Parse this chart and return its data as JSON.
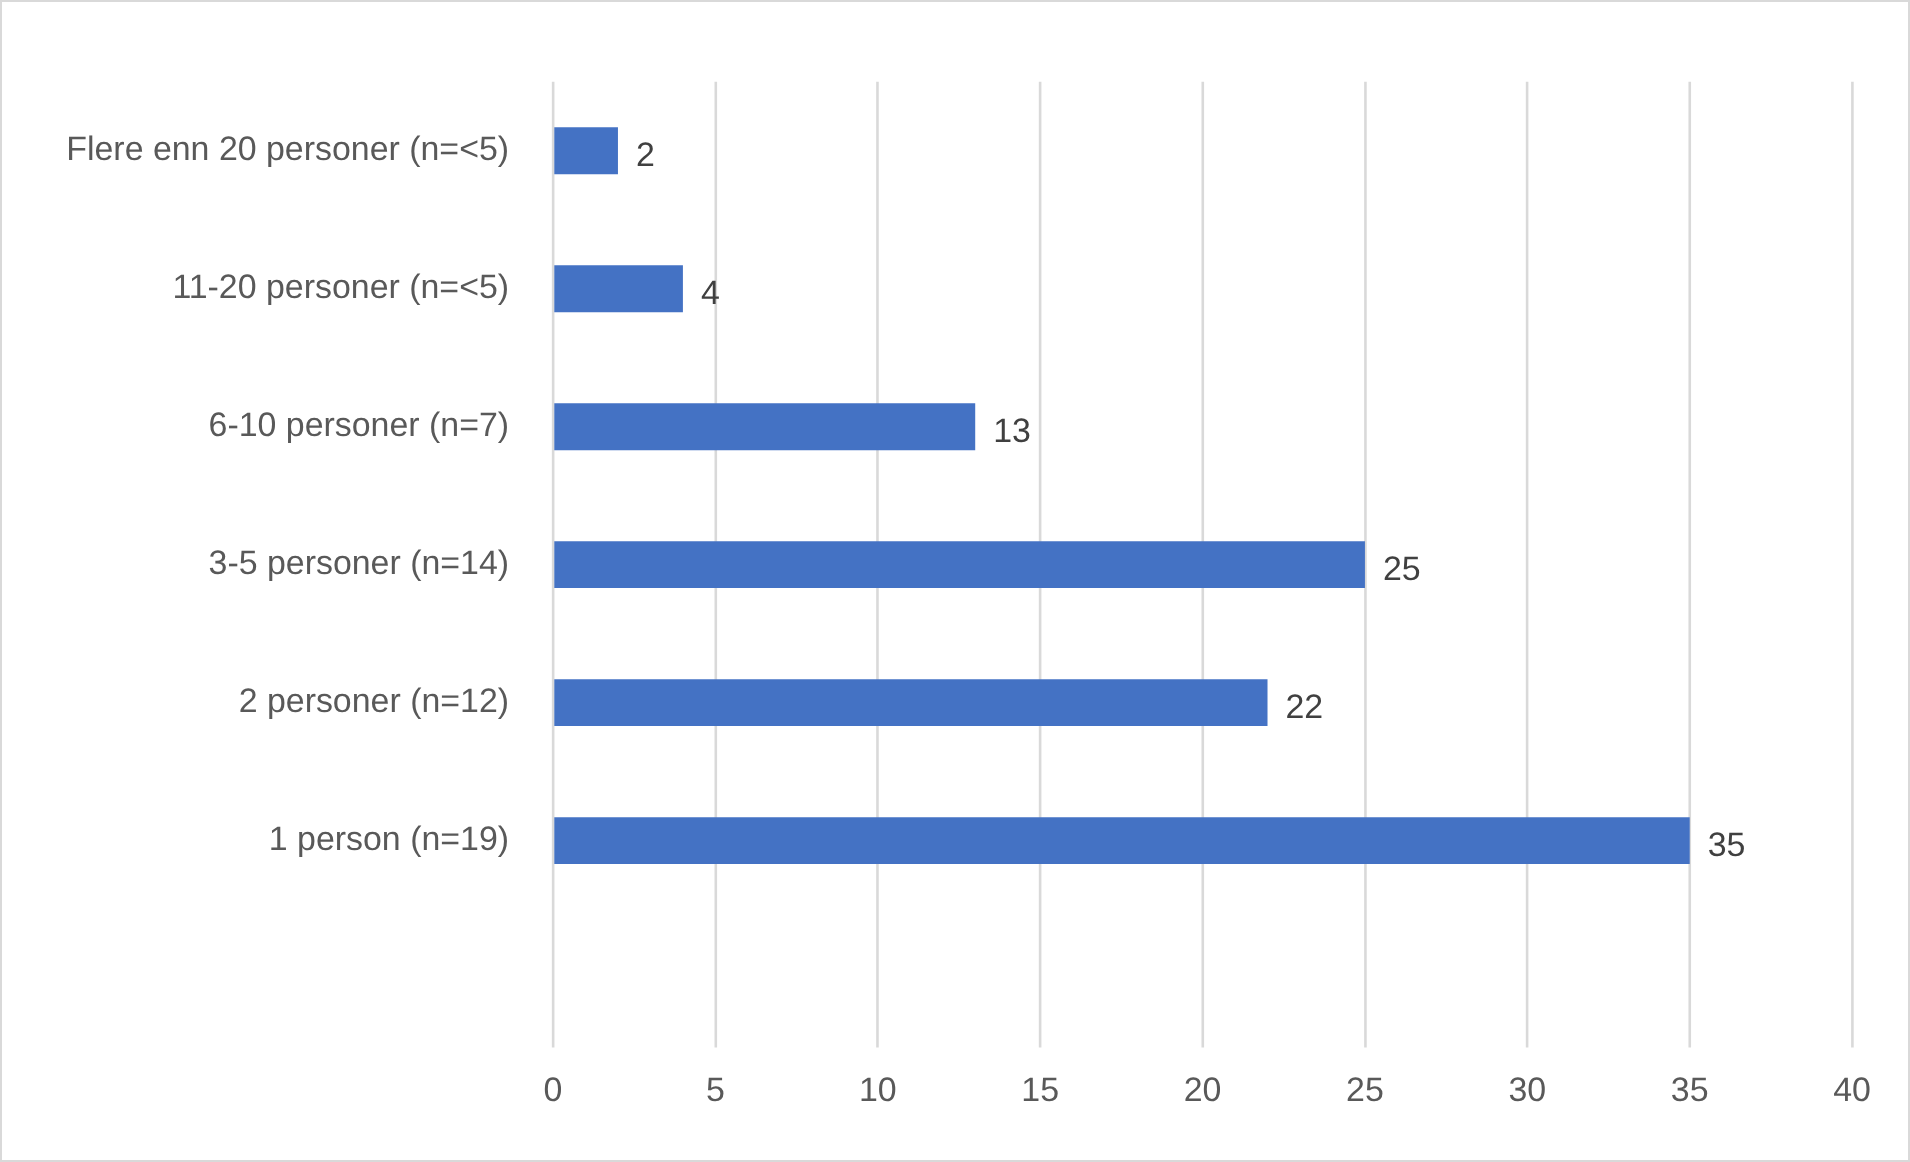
{
  "chart_data": {
    "type": "bar",
    "orientation": "horizontal",
    "categories": [
      "Flere enn 20 personer (n=<5)",
      "11-20 personer (n=<5)",
      "6-10 personer (n=7)",
      "3-5 personer (n=14)",
      "2 personer (n=12)",
      "1 person (n=19)",
      null
    ],
    "values": [
      2,
      4,
      13,
      25,
      22,
      35,
      null
    ],
    "color": "#4472c4",
    "xlim": [
      0,
      40
    ],
    "xticks": [
      0,
      5,
      10,
      15,
      20,
      25,
      30,
      35,
      40
    ],
    "grid": "x",
    "legend": false,
    "data_labels": true
  }
}
